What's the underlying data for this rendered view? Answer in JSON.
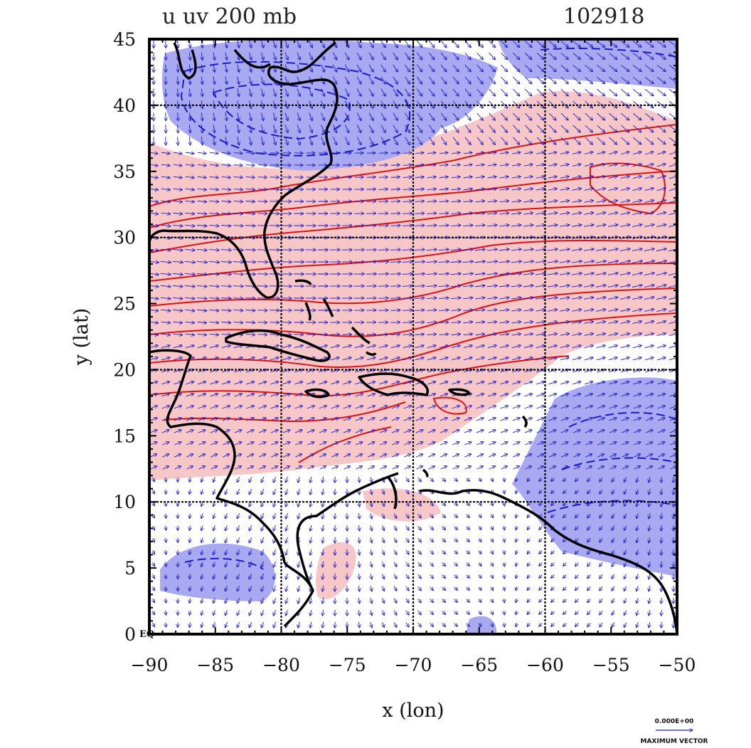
{
  "title": "u  uv 200 mb",
  "timestamp": "102918",
  "x_axis": {
    "label": "x (lon)",
    "ticks": [
      "−90",
      "−85",
      "−80",
      "−75",
      "−70",
      "−65",
      "−60",
      "−55",
      "−50"
    ]
  },
  "y_axis": {
    "label": "y (lat)",
    "ticks": [
      "0",
      "5",
      "10",
      "15",
      "20",
      "25",
      "30",
      "35",
      "40",
      "45"
    ],
    "equator_label": "EQ"
  },
  "legend": {
    "value": "0.000E+00",
    "caption": "MAXIMUM VECTOR"
  },
  "colors": {
    "positive_fill": "#f7c7c7",
    "negative_fill": "#a9a9f2",
    "positive_contour": "#e01010",
    "negative_contour": "#1a1acc",
    "vector": "#1a1acc",
    "coast": "#000000"
  }
}
